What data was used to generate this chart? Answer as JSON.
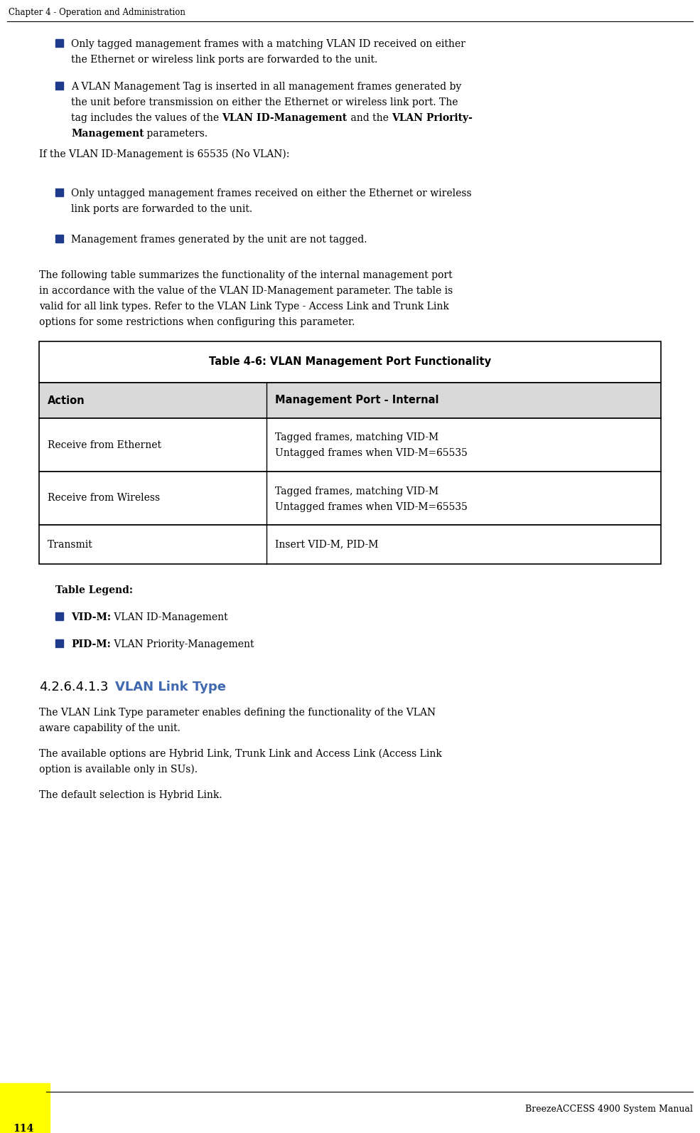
{
  "header_text": "Chapter 4 - Operation and Administration",
  "footer_text": "BreezeACCESS 4900 System Manual",
  "page_number": "114",
  "background_color": "#ffffff",
  "header_line_color": "#000000",
  "bullet_color": "#1e3a8a",
  "body_text_color": "#000000",
  "if_text": "If the VLAN ID-Management is 65535 (No VLAN):",
  "bullet4": "Management frames generated by the unit are not tagged.",
  "table_title": "Table 4-6: VLAN Management Port Functionality",
  "table_header_col1": "Action",
  "table_header_col2": "Management Port - Internal",
  "table_row1_col1": "Receive from Ethernet",
  "table_row1_col2_line1": "Tagged frames, matching VID-M",
  "table_row1_col2_line2": "Untagged frames when VID-M=65535",
  "table_row2_col1": "Receive from Wireless",
  "table_row2_col2_line1": "Tagged frames, matching VID-M",
  "table_row2_col2_line2": "Untagged frames when VID-M=65535",
  "table_row3_col1": "Transmit",
  "table_row3_col2": "Insert VID-M, PID-M",
  "legend_title": "Table Legend:",
  "legend_item1_bold": "VID-M:",
  "legend_item1_text": " VLAN ID-Management",
  "legend_item2_bold": "PID-M:",
  "legend_item2_text": " VLAN Priority-Management",
  "section_num": "4.2.6.4.1.3",
  "section_title": "VLAN Link Type",
  "section_title_color": "#4169b0",
  "section_para3": "The default selection is Hybrid Link.",
  "footer_line_color": "#000000",
  "footer_yellow_color": "#ffff00",
  "table_header_bg": "#d9d9d9",
  "table_border_color": "#000000"
}
